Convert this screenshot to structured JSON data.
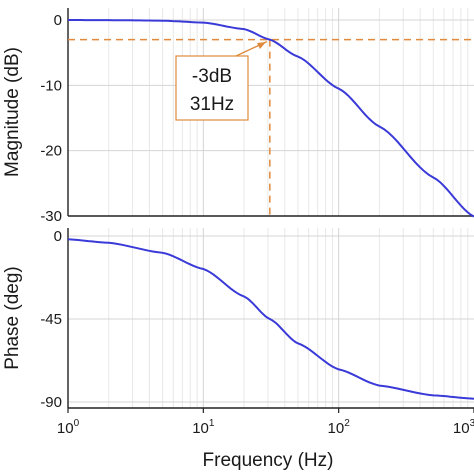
{
  "chart_data": [
    {
      "type": "line",
      "ylabel": "Magnitude (dB)",
      "ylim": [
        -30,
        0
      ],
      "x_scale": "log",
      "xlim": [
        1,
        1000
      ],
      "y_ticks": [
        "0",
        "-10",
        "-20",
        "-30"
      ],
      "grid": true,
      "line_color": "#3a3ad8",
      "series": [
        {
          "x": [
            1,
            2,
            5,
            10,
            20,
            31,
            50,
            100,
            200,
            500,
            1000
          ],
          "values": [
            0,
            -0.02,
            -0.1,
            -0.4,
            -1.4,
            -3,
            -5.6,
            -10.5,
            -16.3,
            -24.1,
            -30.1
          ]
        }
      ],
      "annotation": {
        "line1": "-3dB",
        "line2": "31Hz",
        "x": 31,
        "y": -3,
        "color": "#e08a3c"
      }
    },
    {
      "type": "line",
      "xlabel": "Frequency (Hz)",
      "ylabel": "Phase (deg)",
      "ylim": [
        -90,
        0
      ],
      "x_scale": "log",
      "xlim": [
        1,
        1000
      ],
      "y_ticks": [
        "0",
        "-45",
        "-90"
      ],
      "x_ticks": [
        {
          "base": "10",
          "exp": "0"
        },
        {
          "base": "10",
          "exp": "1"
        },
        {
          "base": "10",
          "exp": "2"
        },
        {
          "base": "10",
          "exp": "3"
        }
      ],
      "grid": true,
      "line_color": "#3a3ad8",
      "series": [
        {
          "x": [
            1,
            2,
            5,
            10,
            20,
            31,
            50,
            100,
            200,
            500,
            1000
          ],
          "values": [
            -1.8,
            -3.7,
            -9.1,
            -17.9,
            -32.8,
            -45,
            -58.2,
            -72.3,
            -81.1,
            -86.4,
            -88.2
          ]
        }
      ]
    }
  ]
}
